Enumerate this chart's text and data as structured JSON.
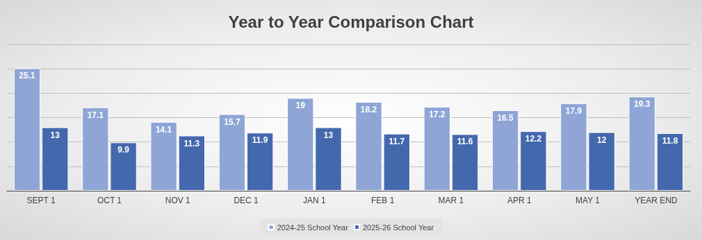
{
  "chart_data": {
    "type": "bar",
    "title": "Year to Year Comparison Chart",
    "categories": [
      "SEPT 1",
      "OCT 1",
      "NOV 1",
      "DEC 1",
      "JAN 1",
      "FEB 1",
      "MAR 1",
      "APR 1",
      "MAY 1",
      "YEAR END"
    ],
    "series": [
      {
        "name": "2024-25 School Year",
        "color": "#8ea5d6",
        "values": [
          25.1,
          17.1,
          14.1,
          15.7,
          19,
          18.2,
          17.2,
          16.5,
          17.9,
          19.3
        ]
      },
      {
        "name": "2025-26 School Year",
        "color": "#4468ad",
        "values": [
          13,
          9.9,
          11.3,
          11.9,
          13,
          11.7,
          11.6,
          12.2,
          12,
          11.8
        ]
      }
    ],
    "ylim": [
      0,
      30
    ],
    "yticks": [
      0,
      5,
      10,
      15,
      20,
      25,
      30
    ],
    "tick_labels": "x",
    "grid": "y",
    "legend": "bottom",
    "data_labels": true
  }
}
